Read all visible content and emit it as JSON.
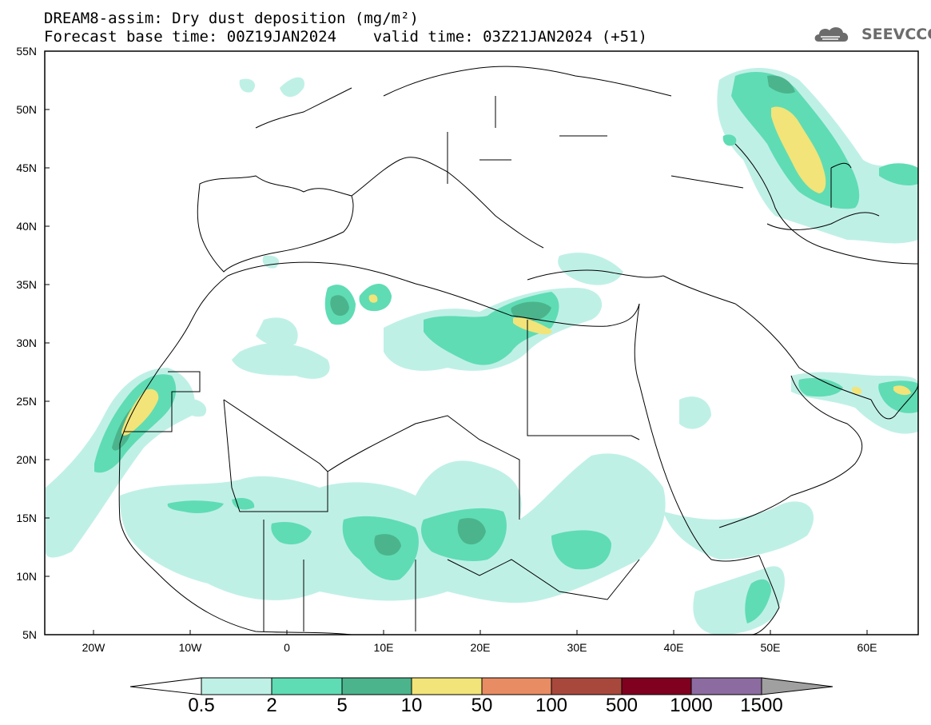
{
  "header": {
    "title_line1": "DREAM8-assim: Dry dust deposition (mg/m²)",
    "title_line2": "Forecast base time: 00Z19JAN2024    valid time: 03Z21JAN2024 (+51)",
    "logo_text": "SEEVCCC"
  },
  "map": {
    "lat_labels": [
      "55N",
      "50N",
      "45N",
      "40N",
      "35N",
      "30N",
      "25N",
      "20N",
      "15N",
      "10N",
      "5N"
    ],
    "lon_labels": [
      "20W",
      "10W",
      "0",
      "10E",
      "20E",
      "30E",
      "40E",
      "50E",
      "60E"
    ],
    "lat_range": [
      5,
      55
    ],
    "lon_range": [
      -25,
      65
    ]
  },
  "colorbar": {
    "labels": [
      "0.5",
      "2",
      "5",
      "10",
      "50",
      "100",
      "500",
      "1000",
      "1500"
    ],
    "colors": [
      "#bff0e6",
      "#5fdcb4",
      "#4cb48c",
      "#f2e478",
      "#e88c64",
      "#a8483c",
      "#800020",
      "#8c6ca0",
      "#a0a0a0"
    ]
  },
  "colors": {
    "level1": "#bff0e6",
    "level2": "#5fdcb4",
    "level3": "#4cb48c",
    "level4": "#f2e478",
    "border": "#000000"
  }
}
